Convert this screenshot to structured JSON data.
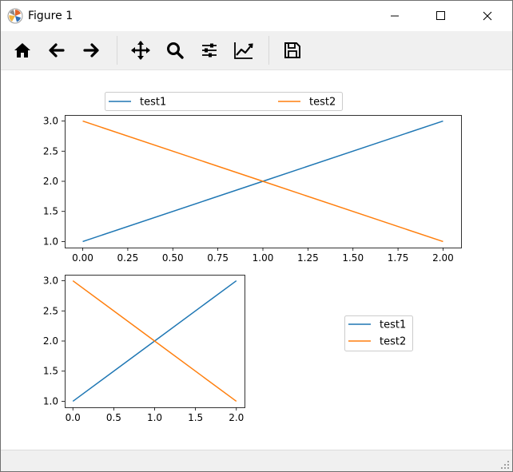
{
  "window": {
    "title": "Figure 1"
  },
  "toolbar": {
    "buttons": [
      {
        "name": "home-button",
        "icon": "home-icon"
      },
      {
        "name": "back-button",
        "icon": "arrow-left-icon"
      },
      {
        "name": "forward-button",
        "icon": "arrow-right-icon"
      },
      {
        "name": "pan-button",
        "icon": "move-icon"
      },
      {
        "name": "zoom-button",
        "icon": "magnifier-icon"
      },
      {
        "name": "configure-subplots-button",
        "icon": "sliders-icon"
      },
      {
        "name": "edit-axes-button",
        "icon": "line-chart-icon"
      },
      {
        "name": "save-button",
        "icon": "floppy-disk-icon"
      }
    ]
  },
  "colors": {
    "series1": "#1f77b4",
    "series2": "#ff7f0e",
    "toolbar_bg": "#f0f0f0"
  },
  "chart_data": [
    {
      "type": "line",
      "series": [
        {
          "name": "test1",
          "x": [
            0,
            1,
            2
          ],
          "values": [
            1,
            2,
            3
          ],
          "color": "#1f77b4"
        },
        {
          "name": "test2",
          "x": [
            0,
            1,
            2
          ],
          "values": [
            3,
            2,
            1
          ],
          "color": "#ff7f0e"
        }
      ],
      "xlim": [
        -0.1,
        2.1
      ],
      "ylim": [
        0.9,
        3.1
      ],
      "xticks": [
        "0.00",
        "0.25",
        "0.50",
        "0.75",
        "1.00",
        "1.25",
        "1.50",
        "1.75",
        "2.00"
      ],
      "xtick_values": [
        0,
        0.25,
        0.5,
        0.75,
        1,
        1.25,
        1.5,
        1.75,
        2
      ],
      "yticks": [
        "1.0",
        "1.5",
        "2.0",
        "2.5",
        "3.0"
      ],
      "ytick_values": [
        1,
        1.5,
        2,
        2.5,
        3
      ],
      "legend": "above-axes, two columns",
      "grid": false
    },
    {
      "type": "line",
      "series": [
        {
          "name": "test1",
          "x": [
            0,
            1,
            2
          ],
          "values": [
            1,
            2,
            3
          ],
          "color": "#1f77b4"
        },
        {
          "name": "test2",
          "x": [
            0,
            1,
            2
          ],
          "values": [
            3,
            2,
            1
          ],
          "color": "#ff7f0e"
        }
      ],
      "xlim": [
        -0.1,
        2.1
      ],
      "ylim": [
        0.9,
        3.1
      ],
      "xticks": [
        "0.0",
        "0.5",
        "1.0",
        "1.5",
        "2.0"
      ],
      "xtick_values": [
        0,
        0.5,
        1,
        1.5,
        2
      ],
      "yticks": [
        "1.0",
        "1.5",
        "2.0",
        "2.5",
        "3.0"
      ],
      "ytick_values": [
        1,
        1.5,
        2,
        2.5,
        3
      ],
      "legend": "outside-right",
      "grid": false
    }
  ]
}
